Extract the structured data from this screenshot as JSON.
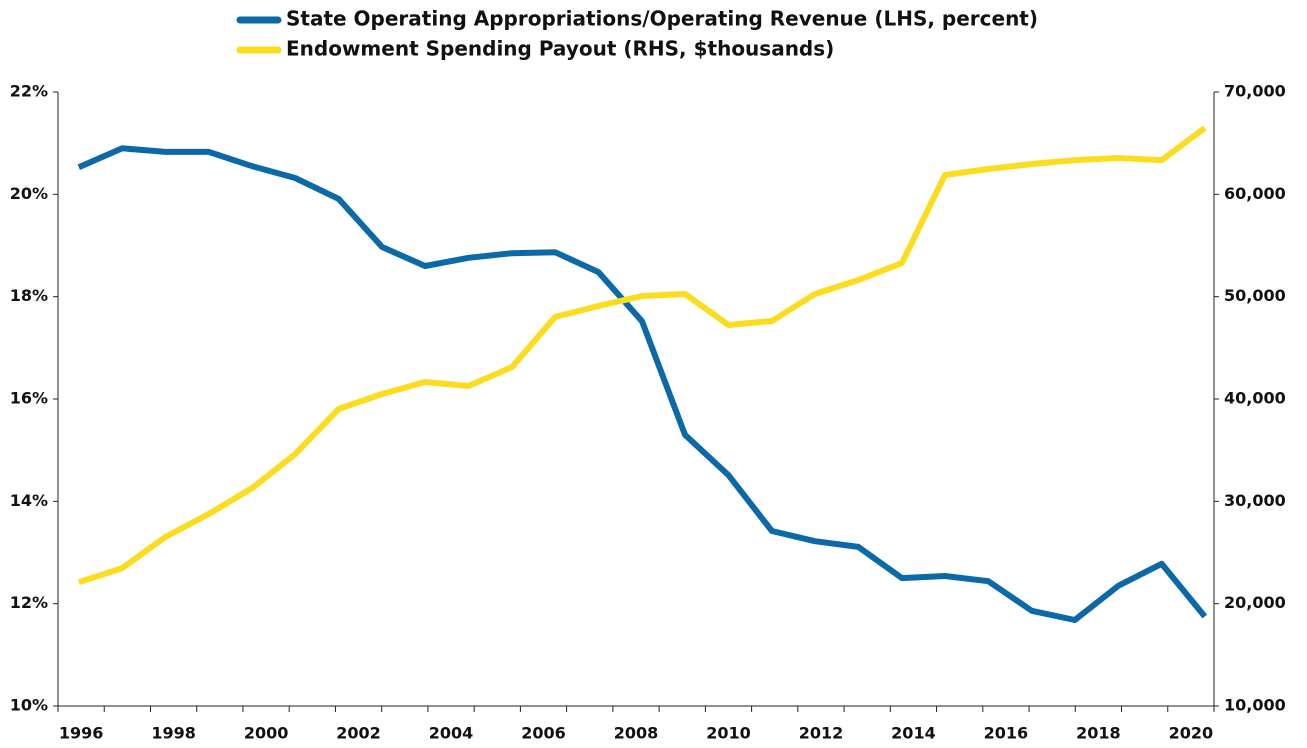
{
  "chart_data": {
    "type": "line",
    "x": [
      1995.95,
      1996.89,
      1997.82,
      1998.76,
      1999.7,
      2000.63,
      2001.57,
      2002.51,
      2003.44,
      2004.38,
      2005.32,
      2006.25,
      2007.19,
      2008.13,
      2009.06,
      2010.0,
      2010.94,
      2011.87,
      2012.81,
      2013.75,
      2014.68,
      2015.62,
      2016.56,
      2017.49,
      2018.43,
      2019.37,
      2020.3
    ],
    "xlim": [
      1995.5,
      2020.5
    ],
    "xticks": [
      1996,
      1998,
      2000,
      2002,
      2004,
      2006,
      2008,
      2010,
      2012,
      2014,
      2016,
      2018,
      2020
    ],
    "ylim": [
      10,
      22
    ],
    "yticks": [
      {
        "value": 10,
        "label": "10%"
      },
      {
        "value": 12,
        "label": "12%"
      },
      {
        "value": 14,
        "label": "14%"
      },
      {
        "value": 16,
        "label": "16%"
      },
      {
        "value": 18,
        "label": "18%"
      },
      {
        "value": 20,
        "label": "20%"
      },
      {
        "value": 22,
        "label": "22%"
      }
    ],
    "y2lim": [
      10000,
      70000
    ],
    "y2ticks": [
      {
        "value": 10000,
        "label": "10,000"
      },
      {
        "value": 20000,
        "label": "20,000"
      },
      {
        "value": 30000,
        "label": "30,000"
      },
      {
        "value": 40000,
        "label": "40,000"
      },
      {
        "value": 50000,
        "label": "50,000"
      },
      {
        "value": 60000,
        "label": "60,000"
      },
      {
        "value": 70000,
        "label": "70,000"
      }
    ],
    "series": [
      {
        "name": "State Operating Appropriations/Operating Revenue (LHS, percent)",
        "color": "#0b69a7",
        "values": [
          20.53,
          20.9,
          20.83,
          20.83,
          20.55,
          20.32,
          19.91,
          18.97,
          18.6,
          18.76,
          18.85,
          18.87,
          18.48,
          17.52,
          15.3,
          14.51,
          13.42,
          13.22,
          13.11,
          12.5,
          12.54,
          12.44,
          11.86,
          11.68,
          12.35,
          12.78,
          11.75
        ]
      },
      {
        "name": "Endowment Spending Payout (RHS, $thousands)",
        "color": "#fbdc1e",
        "axis": "y2",
        "values": [
          22100,
          23480,
          26510,
          28760,
          31300,
          34620,
          39020,
          40490,
          41660,
          41270,
          43130,
          48020,
          49090,
          50070,
          50260,
          47230,
          47620,
          50260,
          51630,
          53290,
          61890,
          62480,
          62960,
          63350,
          63550,
          63350,
          66480
        ]
      }
    ],
    "legend": "top"
  }
}
